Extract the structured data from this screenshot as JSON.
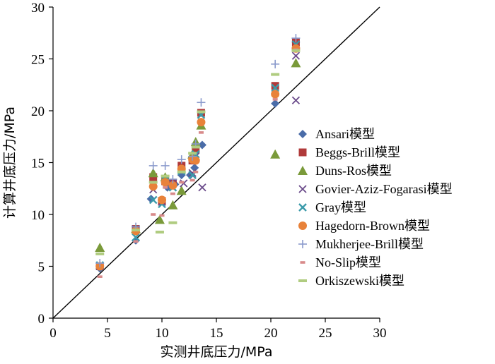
{
  "chart_data": {
    "type": "scatter",
    "xlabel": "实测井底压力/MPa",
    "ylabel": "计算井底压力/MPa",
    "xlim": [
      0,
      30
    ],
    "ylim": [
      0,
      30
    ],
    "xticks": [
      "0",
      "5",
      "10",
      "15",
      "20",
      "25",
      "30"
    ],
    "yticks": [
      "0",
      "5",
      "10",
      "15",
      "20",
      "25",
      "30"
    ],
    "reference_line": {
      "from": [
        0,
        0
      ],
      "to": [
        30,
        30
      ]
    },
    "legend_position": "right",
    "series": [
      {
        "name": "Ansari模型",
        "marker": "diamond",
        "color": "#4a6ca8",
        "points": [
          [
            4.3,
            4.8
          ],
          [
            7.6,
            7.5
          ],
          [
            9.0,
            11.5
          ],
          [
            10.0,
            11.4
          ],
          [
            10.5,
            12.6
          ],
          [
            11.2,
            12.9
          ],
          [
            11.8,
            13.8
          ],
          [
            12.6,
            13.8
          ],
          [
            13.0,
            14.5
          ],
          [
            13.7,
            16.7
          ],
          [
            20.4,
            20.7
          ],
          [
            22.3,
            26.6
          ]
        ]
      },
      {
        "name": "Beggs-Brill模型",
        "marker": "square",
        "color": "#b03a3a",
        "points": [
          [
            4.3,
            5.0
          ],
          [
            7.6,
            8.6
          ],
          [
            9.2,
            13.6
          ],
          [
            10.0,
            11.3
          ],
          [
            10.3,
            13.2
          ],
          [
            11.0,
            13.0
          ],
          [
            11.8,
            14.7
          ],
          [
            12.8,
            15.2
          ],
          [
            13.1,
            16.3
          ],
          [
            13.6,
            19.8
          ],
          [
            20.4,
            22.4
          ],
          [
            22.3,
            26.6
          ]
        ]
      },
      {
        "name": "Duns-Ros模型",
        "marker": "triangle",
        "color": "#7a9a3a",
        "points": [
          [
            4.3,
            6.8
          ],
          [
            7.6,
            8.6
          ],
          [
            9.2,
            14.0
          ],
          [
            9.8,
            9.5
          ],
          [
            10.3,
            13.6
          ],
          [
            11.0,
            10.9
          ],
          [
            11.8,
            12.3
          ],
          [
            12.8,
            15.8
          ],
          [
            13.1,
            17.0
          ],
          [
            13.6,
            18.6
          ],
          [
            20.4,
            15.8
          ],
          [
            22.3,
            24.6
          ]
        ]
      },
      {
        "name": "Govier-Aziz-Fogarasi模型",
        "marker": "x",
        "color": "#6a4a8a",
        "points": [
          [
            4.3,
            5.0
          ],
          [
            7.6,
            8.6
          ],
          [
            9.2,
            12.4
          ],
          [
            10.0,
            11.2
          ],
          [
            11.0,
            13.0
          ],
          [
            12.0,
            13.0
          ],
          [
            12.8,
            14.0
          ],
          [
            13.1,
            15.6
          ],
          [
            13.7,
            12.6
          ],
          [
            20.4,
            22.2
          ],
          [
            22.3,
            21.0
          ],
          [
            22.3,
            25.3
          ]
        ]
      },
      {
        "name": "Gray模型",
        "marker": "asterisk",
        "color": "#3a9aaa",
        "points": [
          [
            4.3,
            5.1
          ],
          [
            7.6,
            7.8
          ],
          [
            9.2,
            11.4
          ],
          [
            10.0,
            11.0
          ],
          [
            10.3,
            13.3
          ],
          [
            11.0,
            12.6
          ],
          [
            11.8,
            14.2
          ],
          [
            12.8,
            13.8
          ],
          [
            13.1,
            15.8
          ],
          [
            13.6,
            19.6
          ],
          [
            20.4,
            22.2
          ],
          [
            22.3,
            26.4
          ]
        ]
      },
      {
        "name": "Hagedorn-Brown模型",
        "marker": "circle",
        "color": "#e8823a",
        "points": [
          [
            4.3,
            5.0
          ],
          [
            7.6,
            8.4
          ],
          [
            9.2,
            12.7
          ],
          [
            10.0,
            11.4
          ],
          [
            10.3,
            13.1
          ],
          [
            11.0,
            12.8
          ],
          [
            11.8,
            14.4
          ],
          [
            12.8,
            15.3
          ],
          [
            13.1,
            15.2
          ],
          [
            13.6,
            18.9
          ],
          [
            20.4,
            21.6
          ],
          [
            22.3,
            26.0
          ]
        ]
      },
      {
        "name": "Mukherjee-Brill模型",
        "marker": "plus",
        "color": "#8a9acc",
        "points": [
          [
            4.3,
            5.3
          ],
          [
            7.6,
            8.8
          ],
          [
            9.2,
            14.7
          ],
          [
            10.3,
            14.7
          ],
          [
            11.0,
            13.4
          ],
          [
            11.8,
            15.3
          ],
          [
            12.8,
            15.6
          ],
          [
            13.1,
            16.8
          ],
          [
            13.6,
            20.8
          ],
          [
            20.4,
            24.5
          ],
          [
            22.3,
            27.0
          ]
        ]
      },
      {
        "name": "No-Slip模型",
        "marker": "dash",
        "color": "#d88a8a",
        "points": [
          [
            4.3,
            4.0
          ],
          [
            7.6,
            7.4
          ],
          [
            9.2,
            10.0
          ],
          [
            10.0,
            9.9
          ],
          [
            10.3,
            12.6
          ],
          [
            11.0,
            12.0
          ],
          [
            11.8,
            13.1
          ],
          [
            12.8,
            13.3
          ],
          [
            13.1,
            14.1
          ],
          [
            13.6,
            17.9
          ],
          [
            20.4,
            21.1
          ],
          [
            22.3,
            25.9
          ]
        ]
      },
      {
        "name": "Orkiszewski模型",
        "marker": "bar",
        "color": "#b0cc80",
        "points": [
          [
            4.3,
            6.2
          ],
          [
            7.6,
            8.5
          ],
          [
            9.2,
            13.1
          ],
          [
            9.8,
            8.3
          ],
          [
            10.3,
            13.7
          ],
          [
            11.0,
            9.2
          ],
          [
            11.8,
            14.1
          ],
          [
            12.8,
            15.9
          ],
          [
            13.1,
            16.5
          ],
          [
            13.6,
            19.9
          ],
          [
            20.4,
            23.5
          ],
          [
            22.3,
            25.8
          ]
        ]
      }
    ]
  }
}
